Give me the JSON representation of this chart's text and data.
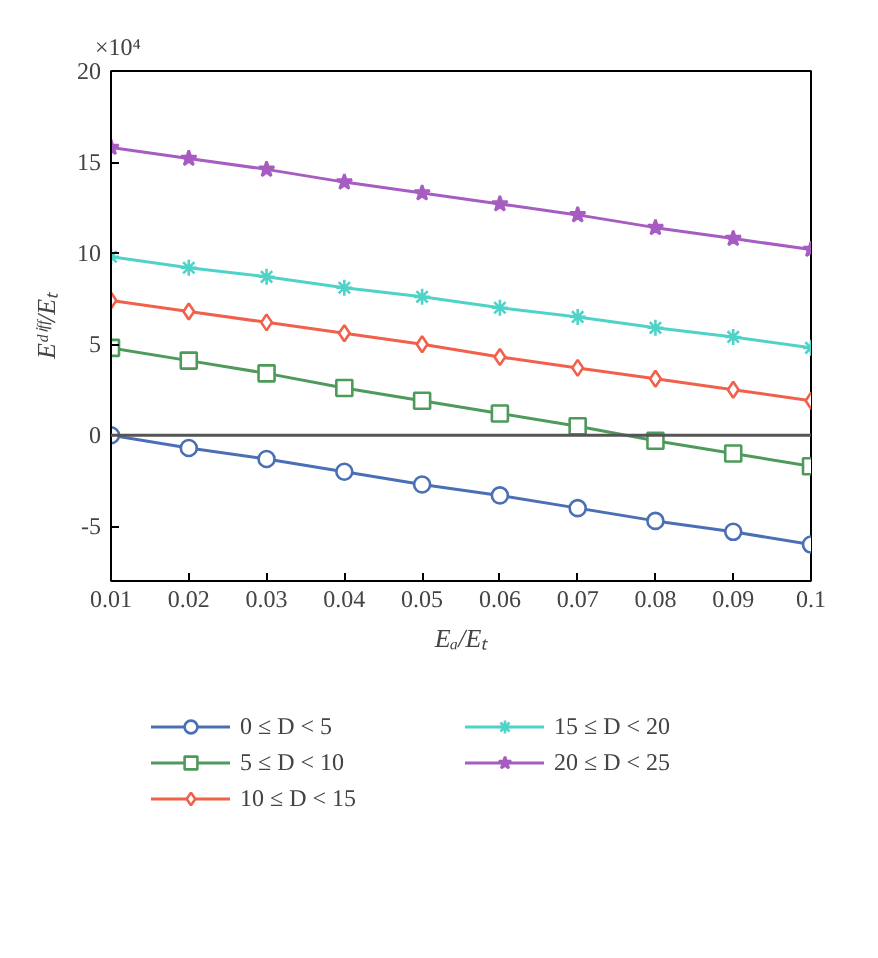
{
  "chart_data": {
    "type": "line",
    "xlabel": "Eₐ/Eₜ",
    "ylabel": "Eᵈⁱᶠᶠ/Eₜ",
    "annotations": [
      "×10⁴"
    ],
    "x": [
      0.01,
      0.02,
      0.03,
      0.04,
      0.05,
      0.06,
      0.07,
      0.08,
      0.09,
      0.1
    ],
    "series": [
      {
        "name": "0 ≤ D < 5",
        "color": "#4a6fb5",
        "marker": "circle",
        "values": [
          0,
          -0.7,
          -1.3,
          -2.0,
          -2.7,
          -3.3,
          -4.0,
          -4.7,
          -5.3,
          -6.0
        ]
      },
      {
        "name": "5 ≤ D < 10",
        "color": "#4e9a5c",
        "marker": "square",
        "values": [
          4.8,
          4.1,
          3.4,
          2.6,
          1.9,
          1.2,
          0.5,
          -0.3,
          -1.0,
          -1.7
        ]
      },
      {
        "name": "10 ≤ D < 15",
        "color": "#f0604a",
        "marker": "diamond",
        "values": [
          7.4,
          6.8,
          6.2,
          5.6,
          5.0,
          4.3,
          3.7,
          3.1,
          2.5,
          1.9
        ]
      },
      {
        "name": "15 ≤ D < 20",
        "color": "#4fd3c8",
        "marker": "cross",
        "values": [
          9.8,
          9.2,
          8.7,
          8.1,
          7.6,
          7.0,
          6.5,
          5.9,
          5.4,
          4.8
        ]
      },
      {
        "name": "20 ≤ D < 25",
        "color": "#a65cc0",
        "marker": "star",
        "values": [
          15.8,
          15.2,
          14.6,
          13.9,
          13.3,
          12.7,
          12.1,
          11.4,
          10.8,
          10.2
        ]
      }
    ],
    "xlim": [
      0.01,
      0.1
    ],
    "xticks": [
      0.01,
      0.02,
      0.03,
      0.04,
      0.05,
      0.06,
      0.07,
      0.08,
      0.09,
      0.1
    ],
    "ylim": [
      -8,
      20
    ],
    "yticks": [
      -5,
      0,
      5,
      10,
      15,
      20
    ],
    "ref_lines": [
      {
        "axis": "y",
        "value": 0,
        "color": "#555555"
      }
    ],
    "grid": false,
    "legend": "bottom"
  }
}
